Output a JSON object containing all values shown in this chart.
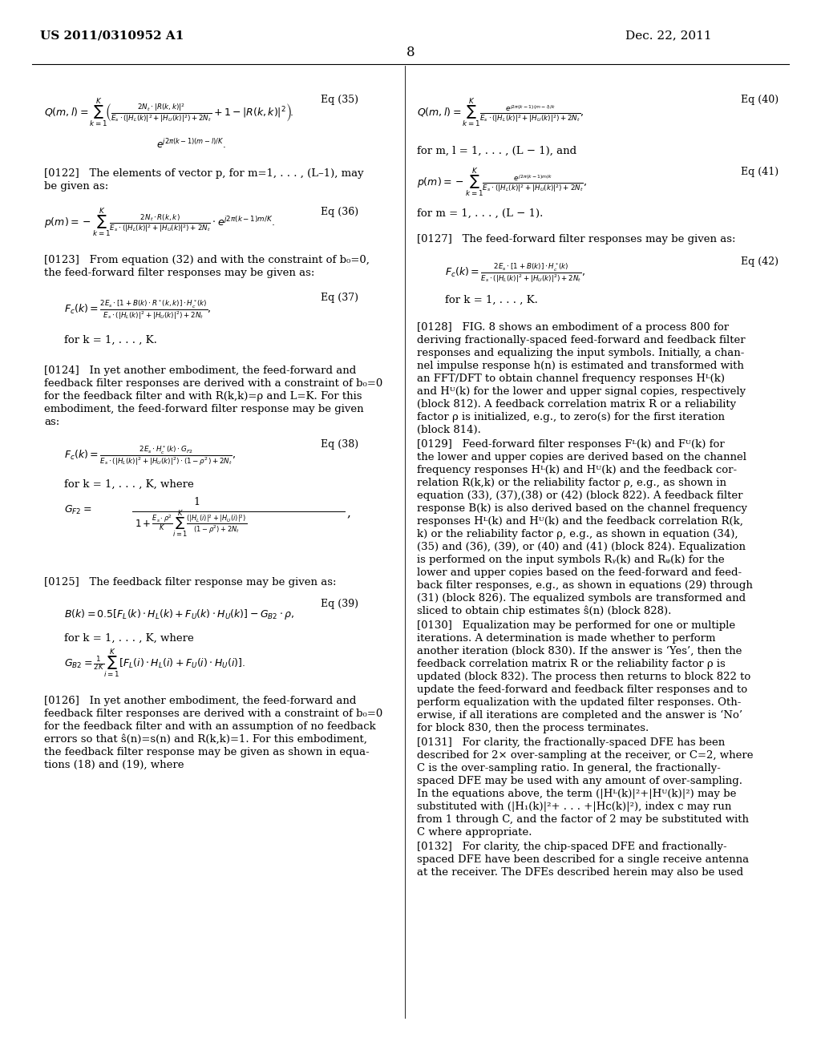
{
  "background_color": "#ffffff",
  "header_left": "US 2011/0310952 A1",
  "header_right": "Dec. 22, 2011",
  "page_number": "8"
}
